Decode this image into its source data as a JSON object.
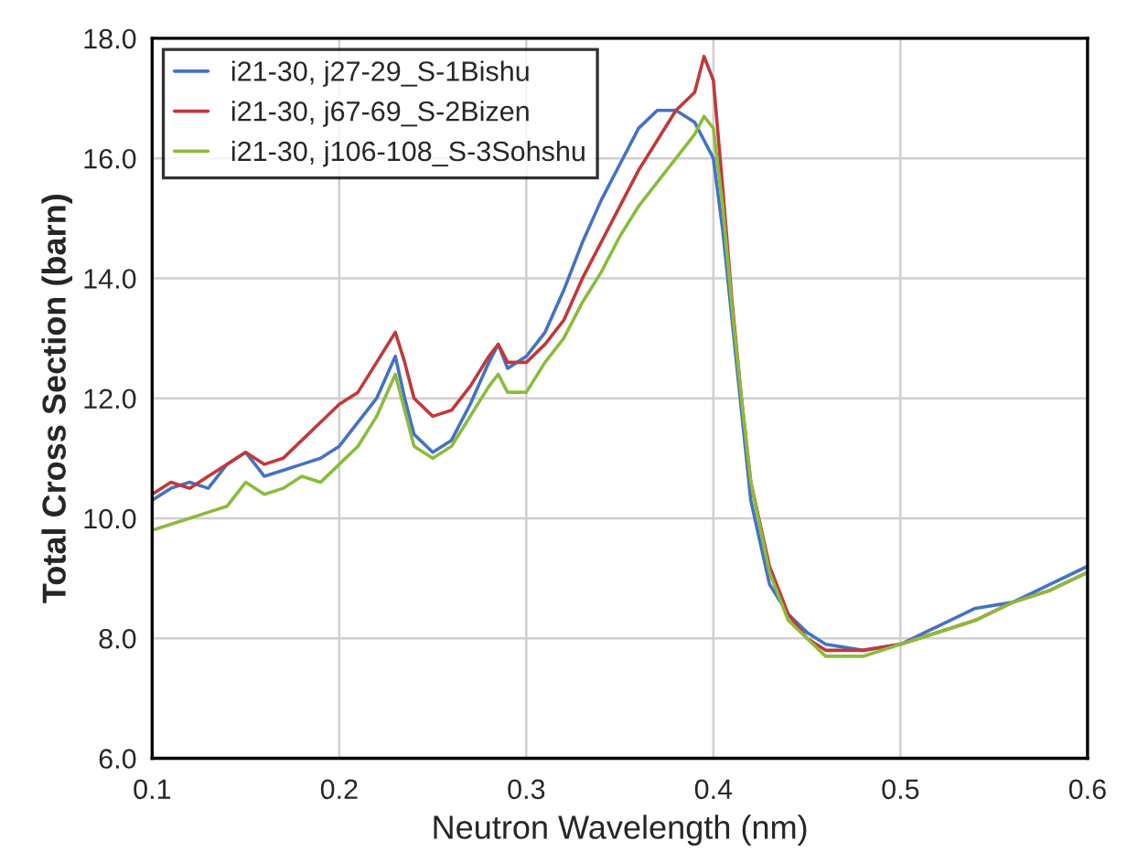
{
  "chart_data": {
    "type": "line",
    "xlabel": "Neutron Wavelength (nm)",
    "ylabel": "Total Cross Section (barn)",
    "x": [
      0.1,
      0.11,
      0.12,
      0.13,
      0.14,
      0.15,
      0.16,
      0.17,
      0.18,
      0.19,
      0.2,
      0.21,
      0.22,
      0.23,
      0.235,
      0.24,
      0.25,
      0.26,
      0.27,
      0.28,
      0.285,
      0.29,
      0.3,
      0.31,
      0.32,
      0.33,
      0.34,
      0.35,
      0.36,
      0.37,
      0.38,
      0.39,
      0.395,
      0.4,
      0.405,
      0.41,
      0.415,
      0.42,
      0.43,
      0.44,
      0.45,
      0.46,
      0.48,
      0.5,
      0.52,
      0.54,
      0.56,
      0.58,
      0.6
    ],
    "series": [
      {
        "name": "i21-30, j27-29_S-1Bishu",
        "color": "#4472c4",
        "values": [
          10.3,
          10.5,
          10.6,
          10.5,
          10.9,
          11.1,
          10.7,
          10.8,
          10.9,
          11.0,
          11.2,
          11.6,
          12.0,
          12.7,
          12.0,
          11.4,
          11.1,
          11.3,
          11.9,
          12.6,
          12.9,
          12.5,
          12.7,
          13.1,
          13.8,
          14.6,
          15.3,
          15.9,
          16.5,
          16.8,
          16.8,
          16.6,
          16.3,
          16.0,
          14.8,
          13.3,
          11.8,
          10.3,
          8.9,
          8.4,
          8.1,
          7.9,
          7.8,
          7.9,
          8.2,
          8.5,
          8.6,
          8.9,
          9.2
        ]
      },
      {
        "name": "i21-30, j67-69_S-2Bizen",
        "color": "#c0393b",
        "values": [
          10.4,
          10.6,
          10.5,
          10.7,
          10.9,
          11.1,
          10.9,
          11.0,
          11.3,
          11.6,
          11.9,
          12.1,
          12.6,
          13.1,
          12.6,
          12.0,
          11.7,
          11.8,
          12.2,
          12.7,
          12.9,
          12.6,
          12.6,
          12.9,
          13.3,
          14.0,
          14.6,
          15.2,
          15.8,
          16.3,
          16.8,
          17.1,
          17.7,
          17.3,
          15.5,
          13.6,
          12.0,
          10.6,
          9.2,
          8.4,
          8.0,
          7.8,
          7.8,
          7.9,
          8.1,
          8.3,
          8.6,
          8.8,
          9.1
        ]
      },
      {
        "name": "i21-30, j106-108_S-3Sohshu",
        "color": "#8cbb3c",
        "values": [
          9.8,
          9.9,
          10.0,
          10.1,
          10.2,
          10.6,
          10.4,
          10.5,
          10.7,
          10.6,
          10.9,
          11.2,
          11.7,
          12.4,
          11.8,
          11.2,
          11.0,
          11.2,
          11.7,
          12.2,
          12.4,
          12.1,
          12.1,
          12.6,
          13.0,
          13.6,
          14.1,
          14.7,
          15.2,
          15.6,
          16.0,
          16.4,
          16.7,
          16.5,
          15.2,
          13.5,
          12.0,
          10.6,
          9.1,
          8.3,
          8.0,
          7.7,
          7.7,
          7.9,
          8.1,
          8.3,
          8.6,
          8.8,
          9.1
        ]
      }
    ],
    "xlim": [
      0.1,
      0.6
    ],
    "xticks": [
      {
        "value": 0.1,
        "label": "0.1"
      },
      {
        "value": 0.2,
        "label": "0.2"
      },
      {
        "value": 0.3,
        "label": "0.3"
      },
      {
        "value": 0.4,
        "label": "0.4"
      },
      {
        "value": 0.5,
        "label": "0.5"
      },
      {
        "value": 0.6,
        "label": "0.6"
      }
    ],
    "ylim": [
      6,
      18
    ],
    "yticks": [
      {
        "value": 6,
        "label": "6.0"
      },
      {
        "value": 8,
        "label": "8.0"
      },
      {
        "value": 10,
        "label": "10.0"
      },
      {
        "value": 12,
        "label": "12.0"
      },
      {
        "value": 14,
        "label": "14.0"
      },
      {
        "value": 16,
        "label": "16.0"
      },
      {
        "value": 18,
        "label": "18.0"
      }
    ],
    "grid": true,
    "legend": "top left",
    "marker": "none",
    "line_style": "solid"
  }
}
